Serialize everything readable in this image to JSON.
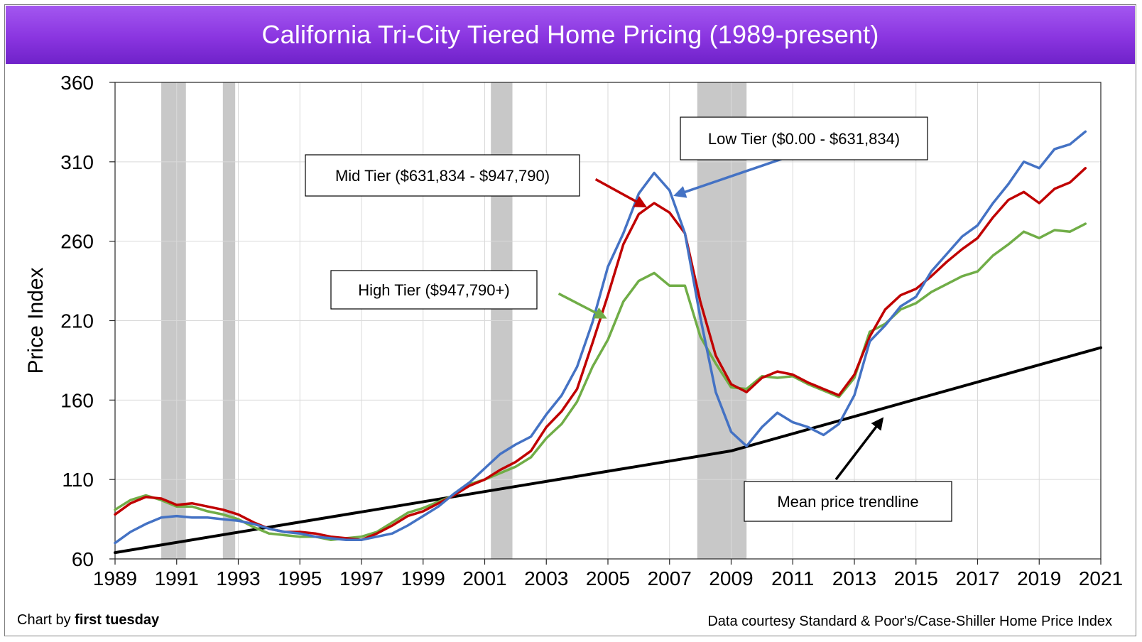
{
  "title": "California Tri-City Tiered Home Pricing (1989-present)",
  "footer": {
    "credit_prefix": "Chart by ",
    "credit_brand": "first tuesday",
    "source": "Data courtesy Standard & Poor's/Case-Shiller Home Price Index"
  },
  "chart_data": {
    "type": "line",
    "title": "California Tri-City Tiered Home Pricing (1989-present)",
    "xlabel": "",
    "ylabel": "Price Index",
    "xlim": [
      1989,
      2021
    ],
    "ylim": [
      60,
      360
    ],
    "x_ticks": [
      1989,
      1991,
      1993,
      1995,
      1997,
      1999,
      2001,
      2003,
      2005,
      2007,
      2009,
      2011,
      2013,
      2015,
      2017,
      2019,
      2021
    ],
    "y_ticks": [
      60,
      110,
      160,
      210,
      260,
      310,
      360
    ],
    "grid": true,
    "recessions": [
      [
        1990.5,
        1991.3
      ],
      [
        1992.5,
        1992.9
      ],
      [
        2001.2,
        2001.9
      ],
      [
        2007.9,
        2009.5
      ]
    ],
    "colors": {
      "low": "#4472c4",
      "mid": "#c00000",
      "high": "#70ad47",
      "trend": "#000000",
      "recession": "#c8c8c8",
      "title_bg": "#8a35e0"
    },
    "series": [
      {
        "key": "low",
        "name": "Low Tier ($0.00 - $631,834)",
        "points": [
          [
            1989,
            70
          ],
          [
            1989.5,
            77
          ],
          [
            1990,
            82
          ],
          [
            1990.5,
            86
          ],
          [
            1991,
            87
          ],
          [
            1991.5,
            86
          ],
          [
            1992,
            86
          ],
          [
            1992.5,
            85
          ],
          [
            1993,
            84
          ],
          [
            1993.5,
            82
          ],
          [
            1994,
            79
          ],
          [
            1994.5,
            77
          ],
          [
            1995,
            76
          ],
          [
            1995.5,
            74
          ],
          [
            1996,
            73
          ],
          [
            1996.5,
            72
          ],
          [
            1997,
            72
          ],
          [
            1997.5,
            74
          ],
          [
            1998,
            76
          ],
          [
            1998.5,
            81
          ],
          [
            1999,
            87
          ],
          [
            1999.5,
            93
          ],
          [
            2000,
            101
          ],
          [
            2000.5,
            108
          ],
          [
            2001,
            117
          ],
          [
            2001.5,
            126
          ],
          [
            2002,
            132
          ],
          [
            2002.5,
            137
          ],
          [
            2003,
            151
          ],
          [
            2003.5,
            163
          ],
          [
            2004,
            181
          ],
          [
            2004.5,
            209
          ],
          [
            2005,
            244
          ],
          [
            2005.5,
            265
          ],
          [
            2006,
            290
          ],
          [
            2006.5,
            303
          ],
          [
            2007,
            292
          ],
          [
            2007.5,
            265
          ],
          [
            2008,
            212
          ],
          [
            2008.5,
            165
          ],
          [
            2009,
            140
          ],
          [
            2009.5,
            131
          ],
          [
            2010,
            143
          ],
          [
            2010.5,
            152
          ],
          [
            2011,
            146
          ],
          [
            2011.5,
            143
          ],
          [
            2012,
            138
          ],
          [
            2012.5,
            145
          ],
          [
            2013,
            163
          ],
          [
            2013.5,
            197
          ],
          [
            2014,
            207
          ],
          [
            2014.5,
            219
          ],
          [
            2015,
            225
          ],
          [
            2015.5,
            241
          ],
          [
            2016,
            252
          ],
          [
            2016.5,
            263
          ],
          [
            2017,
            270
          ],
          [
            2017.5,
            284
          ],
          [
            2018,
            296
          ],
          [
            2018.5,
            310
          ],
          [
            2019,
            306
          ],
          [
            2019.5,
            318
          ],
          [
            2020,
            321
          ],
          [
            2020.5,
            329
          ]
        ]
      },
      {
        "key": "mid",
        "name": "Mid Tier ($631,834 - $947,790)",
        "points": [
          [
            1989,
            88
          ],
          [
            1989.5,
            95
          ],
          [
            1990,
            99
          ],
          [
            1990.5,
            98
          ],
          [
            1991,
            94
          ],
          [
            1991.5,
            95
          ],
          [
            1992,
            93
          ],
          [
            1992.5,
            91
          ],
          [
            1993,
            88
          ],
          [
            1993.5,
            83
          ],
          [
            1994,
            79
          ],
          [
            1994.5,
            77
          ],
          [
            1995,
            77
          ],
          [
            1995.5,
            76
          ],
          [
            1996,
            74
          ],
          [
            1996.5,
            73
          ],
          [
            1997,
            72
          ],
          [
            1997.5,
            76
          ],
          [
            1998,
            81
          ],
          [
            1998.5,
            87
          ],
          [
            1999,
            90
          ],
          [
            1999.5,
            95
          ],
          [
            2000,
            100
          ],
          [
            2000.5,
            106
          ],
          [
            2001,
            110
          ],
          [
            2001.5,
            116
          ],
          [
            2002,
            121
          ],
          [
            2002.5,
            128
          ],
          [
            2003,
            143
          ],
          [
            2003.5,
            153
          ],
          [
            2004,
            167
          ],
          [
            2004.5,
            196
          ],
          [
            2005,
            226
          ],
          [
            2005.5,
            258
          ],
          [
            2006,
            277
          ],
          [
            2006.5,
            284
          ],
          [
            2007,
            278
          ],
          [
            2007.5,
            265
          ],
          [
            2008,
            222
          ],
          [
            2008.5,
            188
          ],
          [
            2009,
            170
          ],
          [
            2009.5,
            165
          ],
          [
            2010,
            174
          ],
          [
            2010.5,
            178
          ],
          [
            2011,
            176
          ],
          [
            2011.5,
            171
          ],
          [
            2012,
            167
          ],
          [
            2012.5,
            163
          ],
          [
            2013,
            176
          ],
          [
            2013.5,
            200
          ],
          [
            2014,
            217
          ],
          [
            2014.5,
            226
          ],
          [
            2015,
            230
          ],
          [
            2015.5,
            238
          ],
          [
            2016,
            247
          ],
          [
            2016.5,
            255
          ],
          [
            2017,
            262
          ],
          [
            2017.5,
            275
          ],
          [
            2018,
            286
          ],
          [
            2018.5,
            291
          ],
          [
            2019,
            284
          ],
          [
            2019.5,
            293
          ],
          [
            2020,
            297
          ],
          [
            2020.5,
            306
          ]
        ]
      },
      {
        "key": "high",
        "name": "High Tier ($947,790+)",
        "points": [
          [
            1989,
            91
          ],
          [
            1989.5,
            97
          ],
          [
            1990,
            100
          ],
          [
            1990.5,
            97
          ],
          [
            1991,
            93
          ],
          [
            1991.5,
            93
          ],
          [
            1992,
            90
          ],
          [
            1992.5,
            88
          ],
          [
            1993,
            85
          ],
          [
            1993.5,
            80
          ],
          [
            1994,
            76
          ],
          [
            1994.5,
            75
          ],
          [
            1995,
            74
          ],
          [
            1995.5,
            74
          ],
          [
            1996,
            72
          ],
          [
            1996.5,
            73
          ],
          [
            1997,
            74
          ],
          [
            1997.5,
            77
          ],
          [
            1998,
            83
          ],
          [
            1998.5,
            89
          ],
          [
            1999,
            92
          ],
          [
            1999.5,
            96
          ],
          [
            2000,
            100
          ],
          [
            2000.5,
            107
          ],
          [
            2001,
            110
          ],
          [
            2001.5,
            114
          ],
          [
            2002,
            118
          ],
          [
            2002.5,
            124
          ],
          [
            2003,
            136
          ],
          [
            2003.5,
            145
          ],
          [
            2004,
            159
          ],
          [
            2004.5,
            181
          ],
          [
            2005,
            198
          ],
          [
            2005.5,
            222
          ],
          [
            2006,
            235
          ],
          [
            2006.5,
            240
          ],
          [
            2007,
            232
          ],
          [
            2007.5,
            232
          ],
          [
            2008,
            200
          ],
          [
            2008.5,
            183
          ],
          [
            2009,
            168
          ],
          [
            2009.5,
            167
          ],
          [
            2010,
            175
          ],
          [
            2010.5,
            174
          ],
          [
            2011,
            175
          ],
          [
            2011.5,
            170
          ],
          [
            2012,
            166
          ],
          [
            2012.5,
            162
          ],
          [
            2013,
            174
          ],
          [
            2013.5,
            203
          ],
          [
            2014,
            208
          ],
          [
            2014.5,
            217
          ],
          [
            2015,
            221
          ],
          [
            2015.5,
            228
          ],
          [
            2016,
            233
          ],
          [
            2016.5,
            238
          ],
          [
            2017,
            241
          ],
          [
            2017.5,
            251
          ],
          [
            2018,
            258
          ],
          [
            2018.5,
            266
          ],
          [
            2019,
            262
          ],
          [
            2019.5,
            267
          ],
          [
            2020,
            266
          ],
          [
            2020.5,
            271
          ]
        ]
      },
      {
        "key": "trend",
        "name": "Mean price trendline",
        "points": [
          [
            1989,
            64
          ],
          [
            2009,
            128
          ],
          [
            2021,
            193
          ]
        ]
      }
    ],
    "annotations": [
      {
        "series": "low",
        "text": "Low Tier ($0.00 - $631,834)",
        "arrow_from": [
          2013.4,
          330
        ],
        "arrow_to": [
          2007.2,
          289
        ]
      },
      {
        "series": "mid",
        "text": "Mid Tier ($631,834 - $947,790)",
        "arrow_from": [
          2004.6,
          299
        ],
        "arrow_to": [
          2006.2,
          282
        ]
      },
      {
        "series": "high",
        "text": "High Tier ($947,790+)",
        "arrow_from": [
          2003.4,
          227
        ],
        "arrow_to": [
          2004.9,
          212
        ]
      },
      {
        "series": "trend",
        "text": "Mean price trendline",
        "arrow_from": [
          2012.4,
          110
        ],
        "arrow_to": [
          2013.9,
          148
        ]
      }
    ]
  }
}
